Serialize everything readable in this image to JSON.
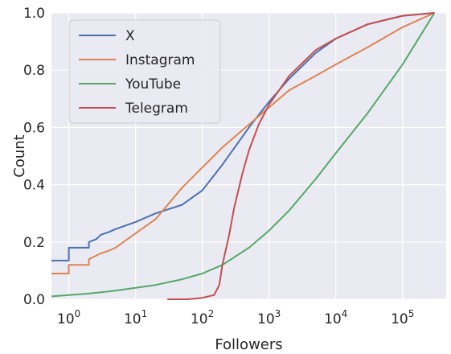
{
  "chart_data": {
    "type": "line",
    "xlabel": "Followers",
    "ylabel": "Count",
    "x_scale": "log",
    "xlim": [
      0.55,
      450000
    ],
    "ylim": [
      0,
      1
    ],
    "grid": true,
    "background": "#eaeaf2",
    "legend_position": "upper left",
    "x_ticks": [
      {
        "value": 1,
        "base": "10",
        "exp": "0"
      },
      {
        "value": 10,
        "base": "10",
        "exp": "1"
      },
      {
        "value": 100,
        "base": "10",
        "exp": "2"
      },
      {
        "value": 1000,
        "base": "10",
        "exp": "3"
      },
      {
        "value": 10000,
        "base": "10",
        "exp": "4"
      },
      {
        "value": 100000,
        "base": "10",
        "exp": "5"
      }
    ],
    "y_ticks": [
      {
        "value": 0.0,
        "label": "0.0"
      },
      {
        "value": 0.2,
        "label": "0.2"
      },
      {
        "value": 0.4,
        "label": "0.4"
      },
      {
        "value": 0.6,
        "label": "0.6"
      },
      {
        "value": 0.8,
        "label": "0.8"
      },
      {
        "value": 1.0,
        "label": "1.0"
      }
    ],
    "series": [
      {
        "name": "X",
        "color": "#4c72b0",
        "x": [
          0.55,
          1,
          1,
          2,
          2,
          2.6,
          3,
          4,
          5,
          10,
          20,
          50,
          100,
          200,
          500,
          1000,
          2000,
          5000,
          10000,
          30000,
          100000,
          300000
        ],
        "y": [
          0.135,
          0.135,
          0.18,
          0.18,
          0.2,
          0.21,
          0.225,
          0.235,
          0.245,
          0.27,
          0.3,
          0.33,
          0.38,
          0.47,
          0.6,
          0.69,
          0.77,
          0.86,
          0.91,
          0.96,
          0.99,
          1.0
        ]
      },
      {
        "name": "Instagram",
        "color": "#dd8452",
        "x": [
          0.55,
          1,
          1,
          2,
          2,
          3,
          4,
          5,
          10,
          20,
          50,
          100,
          200,
          500,
          1000,
          2000,
          5000,
          10000,
          30000,
          100000,
          300000
        ],
        "y": [
          0.09,
          0.09,
          0.12,
          0.12,
          0.14,
          0.16,
          0.17,
          0.18,
          0.23,
          0.28,
          0.39,
          0.46,
          0.53,
          0.61,
          0.67,
          0.73,
          0.78,
          0.82,
          0.88,
          0.95,
          1.0
        ]
      },
      {
        "name": "YouTube",
        "color": "#55a868",
        "x": [
          0.55,
          1,
          2,
          5,
          10,
          20,
          50,
          100,
          200,
          500,
          1000,
          2000,
          5000,
          10000,
          30000,
          100000,
          300000
        ],
        "y": [
          0.01,
          0.015,
          0.02,
          0.03,
          0.04,
          0.05,
          0.07,
          0.09,
          0.12,
          0.18,
          0.24,
          0.31,
          0.42,
          0.51,
          0.65,
          0.82,
          1.0
        ]
      },
      {
        "name": "Telegram",
        "color": "#c44e52",
        "x": [
          30,
          60,
          100,
          150,
          180,
          200,
          250,
          300,
          400,
          500,
          700,
          1000,
          2000,
          5000,
          10000,
          30000,
          100000,
          300000
        ],
        "y": [
          0.0,
          0.0,
          0.005,
          0.015,
          0.05,
          0.12,
          0.22,
          0.32,
          0.44,
          0.52,
          0.61,
          0.68,
          0.78,
          0.87,
          0.91,
          0.96,
          0.99,
          1.0
        ]
      }
    ]
  }
}
